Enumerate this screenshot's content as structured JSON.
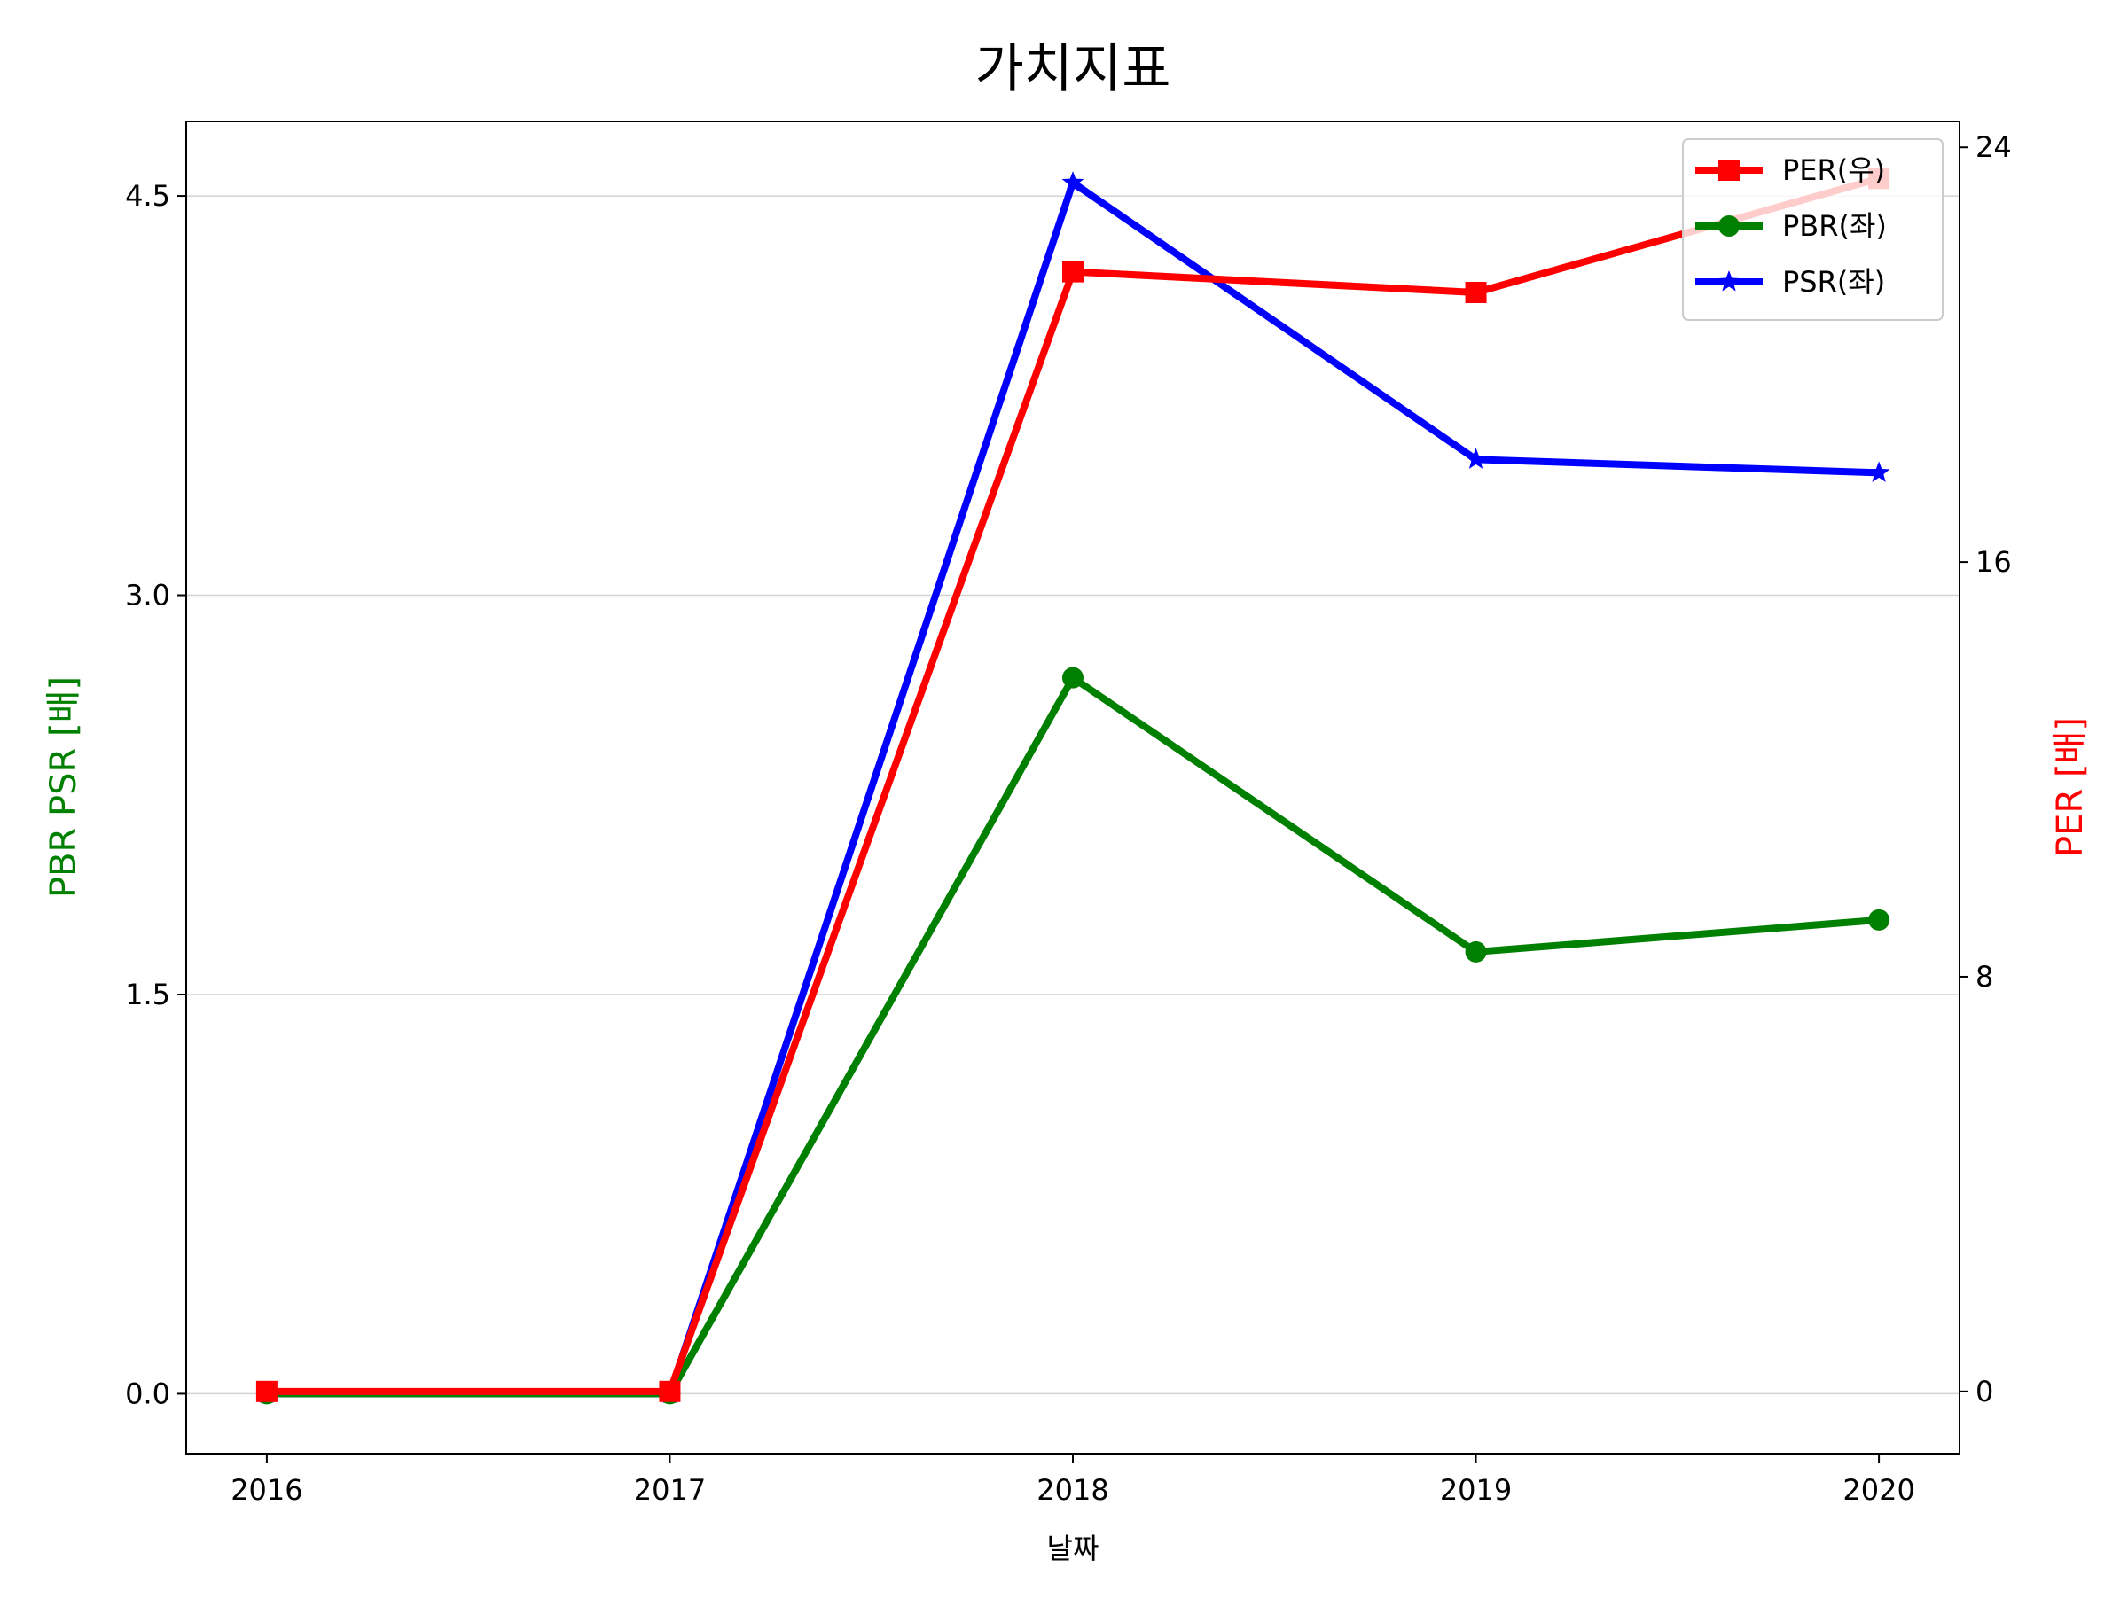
{
  "chart_data": {
    "type": "line",
    "title": "가치지표",
    "xlabel": "날짜",
    "ylabel_left": "PBR PSR [배]",
    "ylabel_right": "PER [배]",
    "categories": [
      "2016",
      "2017",
      "2018",
      "2019",
      "2020"
    ],
    "left_axis": {
      "ylim": [
        -0.225,
        4.78
      ],
      "ticks": [
        0.0,
        1.5,
        3.0,
        4.5
      ],
      "tick_labels": [
        "0.0",
        "1.5",
        "3.0",
        "4.5"
      ],
      "grid": true
    },
    "right_axis": {
      "ylim": [
        -1.2,
        24.5
      ],
      "ticks": [
        0,
        8,
        16,
        24
      ],
      "tick_labels": [
        "0",
        "8",
        "16",
        "24"
      ]
    },
    "series": [
      {
        "name": "PER(우)",
        "axis": "right",
        "color": "#ff0000",
        "marker": "square",
        "values": [
          0,
          0,
          21.6,
          21.2,
          23.4
        ]
      },
      {
        "name": "PBR(좌)",
        "axis": "left",
        "color": "#008000",
        "marker": "circle",
        "values": [
          0,
          0,
          2.69,
          1.66,
          1.78
        ]
      },
      {
        "name": "PSR(좌)",
        "axis": "left",
        "color": "#0000ff",
        "marker": "star",
        "values": [
          0,
          0,
          4.55,
          3.51,
          3.46
        ]
      }
    ],
    "legend_position": "top-right",
    "colors": {
      "ylabel_left": "#008000",
      "ylabel_right": "#ff0000"
    }
  }
}
